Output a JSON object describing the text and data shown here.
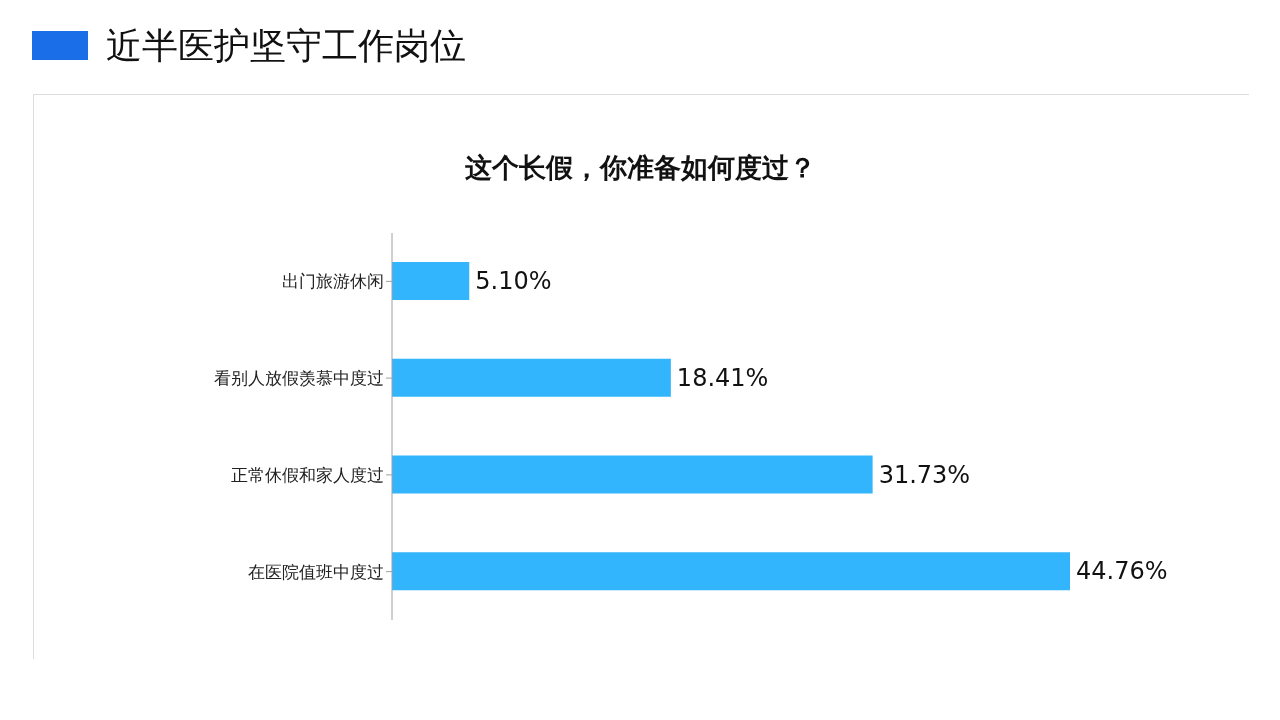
{
  "chart_data": {
    "type": "bar",
    "orientation": "horizontal",
    "title": "近半医护坚守工作岗位",
    "subtitle": "这个长假，你准备如何度过？",
    "categories": [
      "出门旅游休闲",
      "看别人放假羡慕中度过",
      "正常休假和家人度过",
      "在医院值班中度过"
    ],
    "values": [
      5.1,
      18.41,
      31.73,
      44.76
    ],
    "value_labels": [
      "5.10%",
      "18.41%",
      "31.73%",
      "44.76%"
    ],
    "color": "#33b5fd"
  }
}
